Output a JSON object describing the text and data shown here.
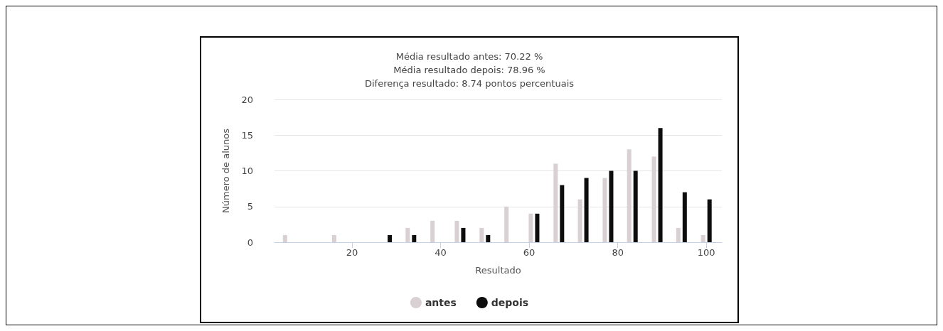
{
  "chart_data": {
    "type": "bar",
    "title": "Média resultado antes: 70.22 %\nMédia resultado depois: 78.96 %\nDiferença resultado: 8.74 pontos percentuais",
    "xlabel": "Resultado",
    "ylabel": "Número de alunos",
    "series": [
      {
        "name": "antes",
        "color": "#d9d0d3",
        "x": [
          5.6,
          16.7,
          33.3,
          38.9,
          44.4,
          50,
          55.6,
          61.1,
          66.7,
          72.2,
          77.8,
          83.3,
          88.9,
          94.4,
          100
        ],
        "values": [
          1,
          1,
          2,
          3,
          3,
          2,
          5,
          4,
          11,
          6,
          9,
          13,
          12,
          2,
          1
        ]
      },
      {
        "name": "depois",
        "color": "#0d0d0d",
        "x": [
          27.8,
          33.3,
          44.4,
          50,
          61.1,
          66.7,
          72.2,
          77.8,
          83.3,
          88.9,
          94.4,
          100
        ],
        "values": [
          1,
          1,
          2,
          1,
          4,
          8,
          9,
          10,
          10,
          16,
          7,
          6
        ]
      }
    ],
    "xlim": [
      2.5,
      103.5
    ],
    "xticks": [
      20,
      40,
      60,
      80,
      100
    ],
    "ylim": [
      0,
      20
    ],
    "yticks": [
      0,
      5,
      10,
      15,
      20
    ],
    "grid": "y",
    "legend": "bottom"
  }
}
